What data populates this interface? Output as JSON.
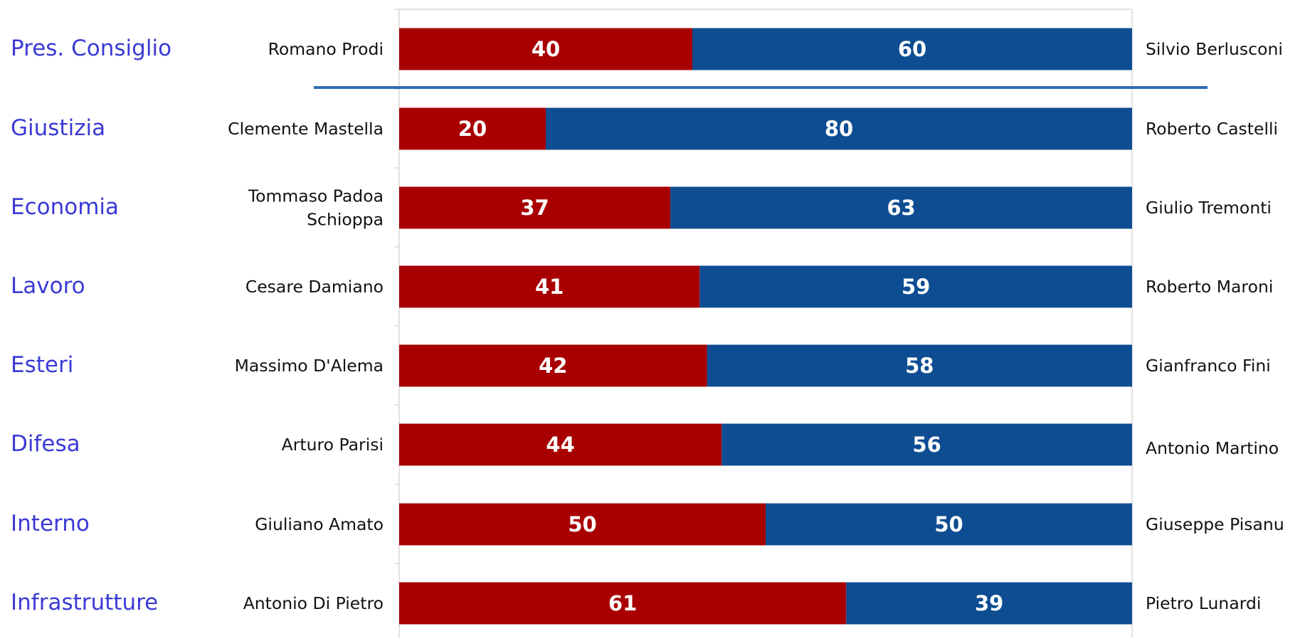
{
  "colors": {
    "left_series": "#a80000",
    "right_series": "#0e4d92",
    "separator": "#2e6db4",
    "ministry_text": "#3a3ad6",
    "grid": "#d9d9d9"
  },
  "chart_data": {
    "type": "bar",
    "orientation": "horizontal",
    "stacked": true,
    "xlim": [
      0,
      100
    ],
    "grid": false,
    "categories": [
      "Pres. Consiglio",
      "Giustizia",
      "Economia",
      "Lavoro",
      "Esteri",
      "Difesa",
      "Interno",
      "Infrastrutture"
    ],
    "left_labels": [
      [
        "Romano Prodi"
      ],
      [
        "Clemente Mastella"
      ],
      [
        "Tommaso Padoa",
        "Schioppa"
      ],
      [
        "Cesare Damiano"
      ],
      [
        "Massimo D'Alema"
      ],
      [
        "Arturo Parisi"
      ],
      [
        "Giuliano Amato"
      ],
      [
        "Antonio Di Pietro"
      ]
    ],
    "right_labels": [
      "Silvio Berlusconi",
      "Roberto Castelli",
      "Giulio Tremonti",
      "Roberto Maroni",
      "Gianfranco Fini",
      "Antonio Martino",
      "Giuseppe Pisanu",
      "Pietro Lunardi"
    ],
    "series": [
      {
        "values": [
          40,
          20,
          37,
          41,
          42,
          44,
          50,
          61
        ],
        "color": "#a80000"
      },
      {
        "values": [
          60,
          80,
          63,
          59,
          58,
          56,
          50,
          39
        ],
        "color": "#0e4d92"
      }
    ]
  }
}
